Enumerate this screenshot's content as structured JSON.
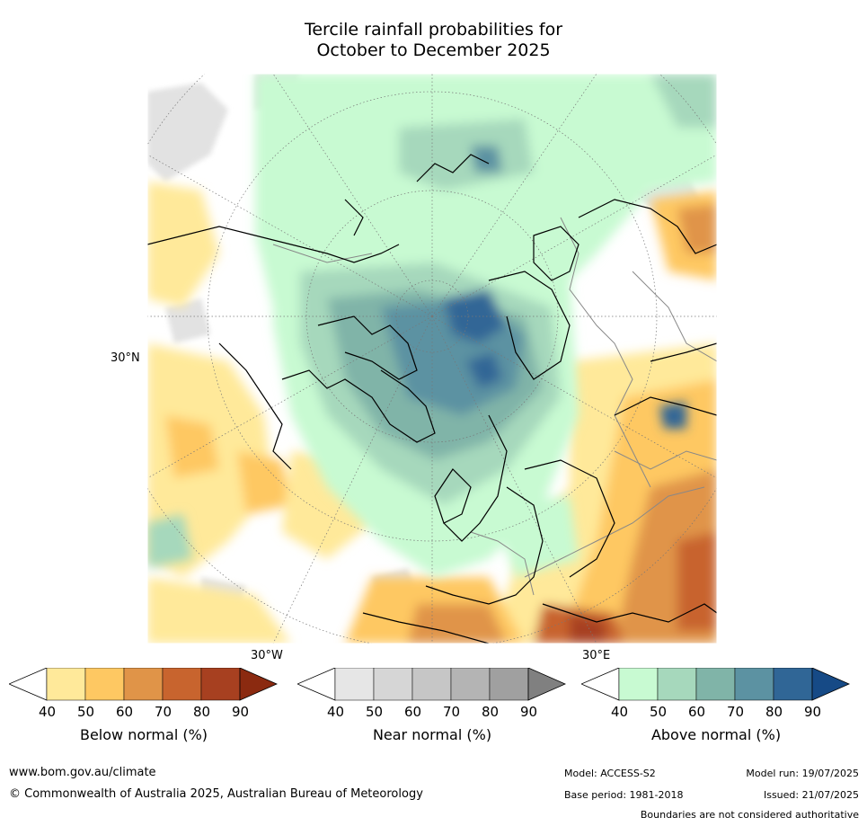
{
  "title": {
    "line1": "Tercile rainfall probabilities for",
    "line2": "October to December 2025"
  },
  "map": {
    "lat_label": "30°N",
    "lon_label_left": "30°W",
    "lon_label_right": "30°E"
  },
  "colorbars": [
    {
      "name": "below",
      "label": "Below normal (%)",
      "ticks": [
        "40",
        "50",
        "60",
        "70",
        "80",
        "90"
      ],
      "colors": [
        "#ffffff",
        "#ffe99a",
        "#fec862",
        "#e09448",
        "#c8642e",
        "#a74020",
        "#8b2a10"
      ]
    },
    {
      "name": "near",
      "label": "Near normal (%)",
      "ticks": [
        "40",
        "50",
        "60",
        "70",
        "80",
        "90"
      ],
      "colors": [
        "#ffffff",
        "#e6e6e6",
        "#d6d6d6",
        "#c6c6c6",
        "#b4b4b4",
        "#a0a0a0",
        "#808080"
      ]
    },
    {
      "name": "above",
      "label": "Above normal (%)",
      "ticks": [
        "40",
        "50",
        "60",
        "70",
        "80",
        "90"
      ],
      "colors": [
        "#ffffff",
        "#c8fad2",
        "#a6d8bc",
        "#80b4a8",
        "#5c92a2",
        "#306696",
        "#164a86"
      ]
    }
  ],
  "footer": {
    "website": "www.bom.gov.au/climate",
    "copyright": "© Commonwealth of Australia 2025, Australian Bureau of Meteorology",
    "model": "Model: ACCESS-S2",
    "base_period": "Base period: 1981-2018",
    "model_run": "Model run: 19/07/2025",
    "issued": "Issued: 21/07/2025",
    "disclaimer": "Boundaries are not considered authoritative"
  }
}
